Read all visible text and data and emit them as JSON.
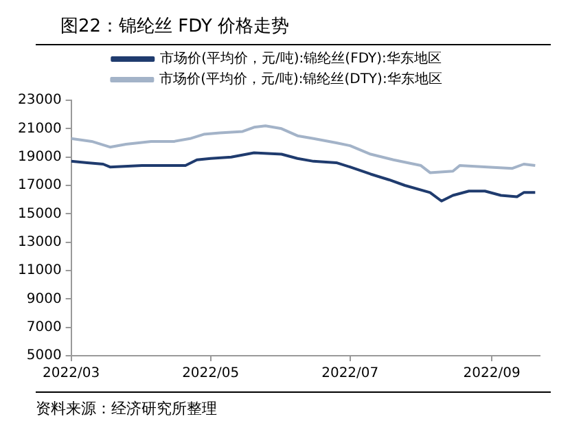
{
  "chart_data": {
    "type": "line",
    "title": "图22：锦纶丝 FDY 价格走势",
    "annotations": [
      "资料来源：经济研究所整理"
    ],
    "legend": "top",
    "grid": false,
    "marker": "none",
    "line_style": "solid",
    "xlim": [
      "2022-03-01",
      "2022-09-22"
    ],
    "xticks": [
      {
        "value": "2022-03-01",
        "label": "2022/03"
      },
      {
        "value": "2022-05-01",
        "label": "2022/05"
      },
      {
        "value": "2022-07-01",
        "label": "2022/07"
      },
      {
        "value": "2022-09-01",
        "label": "2022/09"
      }
    ],
    "ylim": [
      5000,
      23000
    ],
    "yticks": [
      5000,
      7000,
      9000,
      11000,
      13000,
      15000,
      17000,
      19000,
      21000,
      23000
    ],
    "series": [
      {
        "name": "市场价(平均价，元/吨):锦纶丝(FDY):华东地区",
        "color": "#1f3b6e",
        "x": [
          "2022-03-01",
          "2022-03-08",
          "2022-03-15",
          "2022-03-18",
          "2022-04-01",
          "2022-04-20",
          "2022-04-25",
          "2022-05-01",
          "2022-05-10",
          "2022-05-20",
          "2022-06-01",
          "2022-06-08",
          "2022-06-15",
          "2022-06-25",
          "2022-07-01",
          "2022-07-10",
          "2022-07-18",
          "2022-07-25",
          "2022-08-05",
          "2022-08-10",
          "2022-08-15",
          "2022-08-22",
          "2022-08-29",
          "2022-09-05",
          "2022-09-12",
          "2022-09-15",
          "2022-09-20"
        ],
        "values": [
          18700,
          18600,
          18500,
          18300,
          18400,
          18400,
          18800,
          18900,
          19000,
          19300,
          19200,
          18900,
          18700,
          18600,
          18300,
          17800,
          17400,
          17000,
          16500,
          15900,
          16300,
          16600,
          16600,
          16300,
          16200,
          16500,
          16500
        ]
      },
      {
        "name": "市场价(平均价，元/吨):锦纶丝(DTY):华东地区",
        "color": "#a3b3c8",
        "x": [
          "2022-03-01",
          "2022-03-10",
          "2022-03-18",
          "2022-03-25",
          "2022-04-05",
          "2022-04-15",
          "2022-04-22",
          "2022-04-28",
          "2022-05-05",
          "2022-05-15",
          "2022-05-20",
          "2022-05-25",
          "2022-06-01",
          "2022-06-08",
          "2022-06-15",
          "2022-06-25",
          "2022-07-01",
          "2022-07-10",
          "2022-07-20",
          "2022-08-01",
          "2022-08-05",
          "2022-08-15",
          "2022-08-18",
          "2022-08-30",
          "2022-09-10",
          "2022-09-15",
          "2022-09-20"
        ],
        "values": [
          20300,
          20100,
          19700,
          19900,
          20100,
          20100,
          20300,
          20600,
          20700,
          20800,
          21100,
          21200,
          21000,
          20500,
          20300,
          20000,
          19800,
          19200,
          18800,
          18400,
          17900,
          18000,
          18400,
          18300,
          18200,
          18500,
          18400
        ]
      }
    ]
  }
}
